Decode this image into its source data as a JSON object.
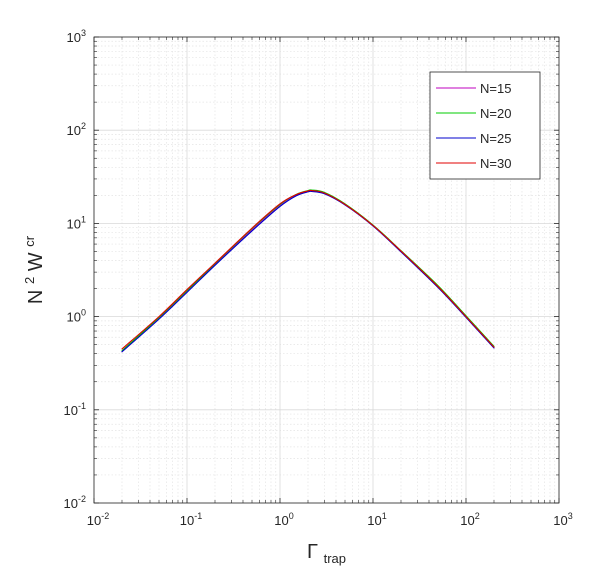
{
  "chart_data": {
    "type": "line",
    "title": "",
    "xlabel": {
      "base": "Γ",
      "sub": "trap"
    },
    "ylabel": {
      "base": "N",
      "sup1": "2",
      "mid": " W",
      "sup2": "cr"
    },
    "x_scale": "log",
    "y_scale": "log",
    "xlim": [
      0.01,
      1000
    ],
    "ylim": [
      0.01,
      1000
    ],
    "grid": true,
    "minor_grid": true,
    "legend_position": "top-right",
    "x_ticks": [
      {
        "value": 0.01,
        "base": "10",
        "exp": "-2"
      },
      {
        "value": 0.1,
        "base": "10",
        "exp": "-1"
      },
      {
        "value": 1,
        "base": "10",
        "exp": "0"
      },
      {
        "value": 10,
        "base": "10",
        "exp": "1"
      },
      {
        "value": 100,
        "base": "10",
        "exp": "2"
      },
      {
        "value": 1000,
        "base": "10",
        "exp": "3"
      }
    ],
    "y_ticks": [
      {
        "value": 0.01,
        "base": "10",
        "exp": "-2"
      },
      {
        "value": 0.1,
        "base": "10",
        "exp": "-1"
      },
      {
        "value": 1,
        "base": "10",
        "exp": "0"
      },
      {
        "value": 10,
        "base": "10",
        "exp": "1"
      },
      {
        "value": 100,
        "base": "10",
        "exp": "2"
      },
      {
        "value": 1000,
        "base": "10",
        "exp": "3"
      }
    ],
    "series": [
      {
        "name": "N=15",
        "color": "#bf00bf",
        "x": [
          0.02,
          0.05,
          0.1,
          0.2,
          0.5,
          1.0,
          1.5,
          2.0,
          2.2,
          3.0,
          5.0,
          10,
          20,
          50,
          100,
          200
        ],
        "y": [
          0.42,
          0.95,
          1.85,
          3.6,
          8.5,
          15.5,
          20,
          22,
          22.3,
          21,
          16,
          9.5,
          5,
          2.1,
          1.0,
          0.47
        ]
      },
      {
        "name": "N=20",
        "color": "#00cc00",
        "x": [
          0.02,
          0.05,
          0.1,
          0.2,
          0.5,
          1.0,
          1.5,
          2.0,
          2.2,
          3.0,
          5.0,
          10,
          20,
          50,
          100,
          200
        ],
        "y": [
          0.43,
          0.98,
          1.9,
          3.7,
          8.8,
          16,
          20.5,
          22.5,
          22.8,
          21.5,
          16.2,
          9.6,
          5.1,
          2.15,
          1.02,
          0.48
        ]
      },
      {
        "name": "N=25",
        "color": "#0000cc",
        "x": [
          0.02,
          0.05,
          0.1,
          0.2,
          0.5,
          1.0,
          1.5,
          2.0,
          2.2,
          3.0,
          5.0,
          10,
          20,
          50,
          100,
          200
        ],
        "y": [
          0.42,
          0.94,
          1.82,
          3.55,
          8.3,
          15.2,
          19.8,
          21.8,
          22.0,
          20.8,
          15.8,
          9.4,
          4.95,
          2.05,
          0.98,
          0.46
        ]
      },
      {
        "name": "N=30",
        "color": "#e00000",
        "x": [
          0.02,
          0.05,
          0.1,
          0.2,
          0.5,
          1.0,
          1.5,
          2.0,
          2.2,
          3.0,
          5.0,
          10,
          20,
          50,
          100,
          200
        ],
        "y": [
          0.45,
          1.0,
          1.95,
          3.75,
          8.9,
          16.2,
          20.4,
          22.3,
          22.5,
          21.2,
          16.0,
          9.5,
          5.05,
          2.1,
          1.0,
          0.47
        ]
      }
    ]
  }
}
